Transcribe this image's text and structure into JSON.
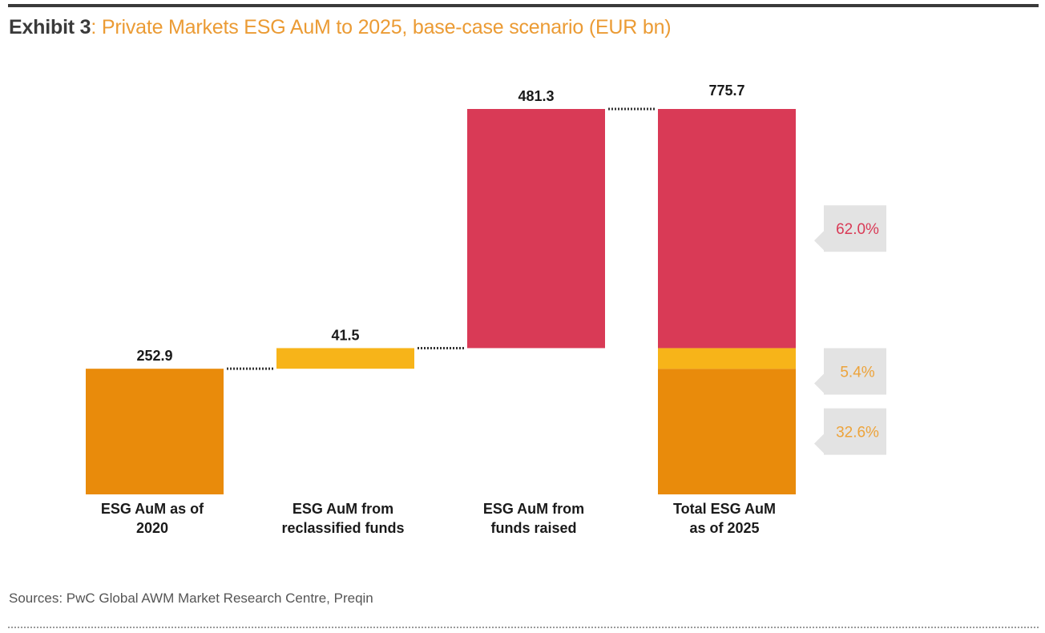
{
  "header": {
    "exhibit_label": "Exhibit 3",
    "subtitle": ": Private Markets ESG AuM to 2025, base-case scenario (EUR bn)"
  },
  "footer": {
    "sources": "Sources: PwC Global AWM Market Research Centre, Preqin"
  },
  "colors": {
    "orange": "#e98b0b",
    "yellow": "#f7b419",
    "red": "#d93a56",
    "callout_bg": "#e3e3e3",
    "connector": "#333333"
  },
  "chart_data": {
    "type": "bar",
    "subtype": "waterfall",
    "title": "Exhibit 3: Private Markets ESG AuM to 2025, base-case scenario (EUR bn)",
    "unit": "EUR bn",
    "xlabel": "",
    "ylabel": "",
    "ylim": [
      0,
      775.7
    ],
    "grid": false,
    "categories": [
      "ESG AuM as of 2020",
      "ESG AuM from reclassified funds",
      "ESG AuM from funds raised",
      "Total ESG AuM as of 2025"
    ],
    "category_lines": [
      [
        "ESG AuM as of",
        "2020"
      ],
      [
        "ESG AuM from",
        "reclassified funds"
      ],
      [
        "ESG AuM from",
        "funds raised"
      ],
      [
        "Total ESG AuM",
        "as of 2025"
      ]
    ],
    "steps": [
      {
        "label": "ESG AuM as of 2020",
        "value": 252.9,
        "base": 0,
        "color_key": "orange",
        "data_label": "252.9"
      },
      {
        "label": "ESG AuM from reclassified funds",
        "value": 41.5,
        "base": 252.9,
        "color_key": "yellow",
        "data_label": "41.5"
      },
      {
        "label": "ESG AuM from funds raised",
        "value": 481.3,
        "base": 294.4,
        "color_key": "red",
        "data_label": "481.3"
      }
    ],
    "total": {
      "label": "Total ESG AuM as of 2025",
      "value": 775.7,
      "data_label": "775.7",
      "segments": [
        {
          "name": "ESG AuM as of 2020",
          "value": 252.9,
          "share_pct": 32.6,
          "share_label": "32.6%",
          "color_key": "orange"
        },
        {
          "name": "ESG AuM from reclassified funds",
          "value": 41.5,
          "share_pct": 5.4,
          "share_label": "5.4%",
          "color_key": "yellow"
        },
        {
          "name": "ESG AuM from funds raised",
          "value": 481.3,
          "share_pct": 62.0,
          "share_label": "62.0%",
          "color_key": "red"
        }
      ]
    },
    "legend": null
  }
}
